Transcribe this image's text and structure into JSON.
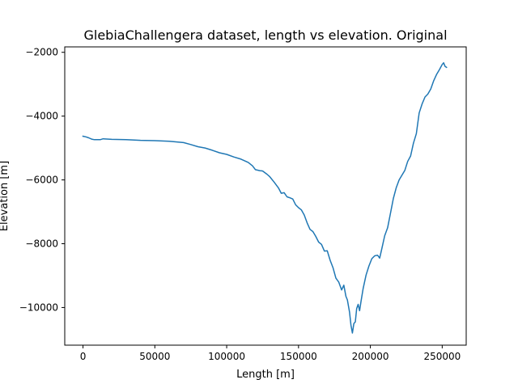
{
  "chart_data": {
    "type": "line",
    "title": "GlebiaChallengera dataset, length vs elevation. Original",
    "xlabel": "Length [m]",
    "ylabel": "Elevation [m]",
    "xlim": [
      -12700,
      266700
    ],
    "ylim": [
      -11180,
      -1830
    ],
    "xticks": [
      0,
      50000,
      100000,
      150000,
      200000,
      250000
    ],
    "yticks": [
      -10000,
      -8000,
      -6000,
      -4000,
      -2000
    ],
    "xtick_labels": [
      "0",
      "50000",
      "100000",
      "150000",
      "200000",
      "250000"
    ],
    "ytick_labels": [
      "−10000",
      "−8000",
      "−6000",
      "−4000",
      "−2000"
    ],
    "grid": false,
    "series": [
      {
        "color": "#1f77b4",
        "x": [
          0,
          2000,
          4000,
          6000,
          8000,
          12000,
          14000,
          20000,
          30000,
          40000,
          50000,
          60000,
          70000,
          75000,
          80000,
          85000,
          90000,
          95000,
          100000,
          105000,
          110000,
          115000,
          118000,
          120000,
          123000,
          125000,
          128000,
          130000,
          133000,
          136000,
          138000,
          140000,
          142000,
          144000,
          146000,
          148000,
          150000,
          152000,
          154000,
          156000,
          158000,
          160000,
          162000,
          164000,
          166000,
          168000,
          170000,
          172000,
          174000,
          176000,
          178000,
          180000,
          181500,
          183000,
          184000,
          185500,
          186500,
          187500,
          188500,
          189500,
          190500,
          191500,
          192500,
          193500,
          195000,
          197000,
          199000,
          201000,
          203000,
          205000,
          206500,
          208000,
          210000,
          212000,
          214000,
          216000,
          218000,
          220000,
          222000,
          224000,
          226000,
          228000,
          230000,
          232000,
          234000,
          236000,
          238000,
          240000,
          242000,
          244000,
          246000,
          248000,
          250000,
          251000,
          252000,
          253000
        ],
        "y": [
          -4630,
          -4650,
          -4680,
          -4720,
          -4740,
          -4740,
          -4710,
          -4730,
          -4740,
          -4760,
          -4770,
          -4790,
          -4830,
          -4890,
          -4960,
          -5000,
          -5070,
          -5150,
          -5200,
          -5280,
          -5350,
          -5450,
          -5560,
          -5680,
          -5710,
          -5720,
          -5820,
          -5900,
          -6070,
          -6250,
          -6420,
          -6400,
          -6530,
          -6560,
          -6600,
          -6780,
          -6870,
          -6940,
          -7100,
          -7350,
          -7550,
          -7620,
          -7770,
          -7950,
          -8020,
          -8230,
          -8220,
          -8520,
          -8750,
          -9080,
          -9200,
          -9450,
          -9300,
          -9650,
          -9760,
          -10150,
          -10550,
          -10800,
          -10500,
          -10450,
          -10030,
          -9900,
          -10100,
          -9800,
          -9400,
          -8980,
          -8700,
          -8470,
          -8380,
          -8360,
          -8450,
          -8150,
          -7750,
          -7500,
          -7050,
          -6580,
          -6250,
          -6000,
          -5850,
          -5700,
          -5420,
          -5250,
          -4850,
          -4550,
          -3900,
          -3620,
          -3400,
          -3310,
          -3150,
          -2900,
          -2700,
          -2550,
          -2380,
          -2330,
          -2440,
          -2470
        ]
      }
    ]
  }
}
